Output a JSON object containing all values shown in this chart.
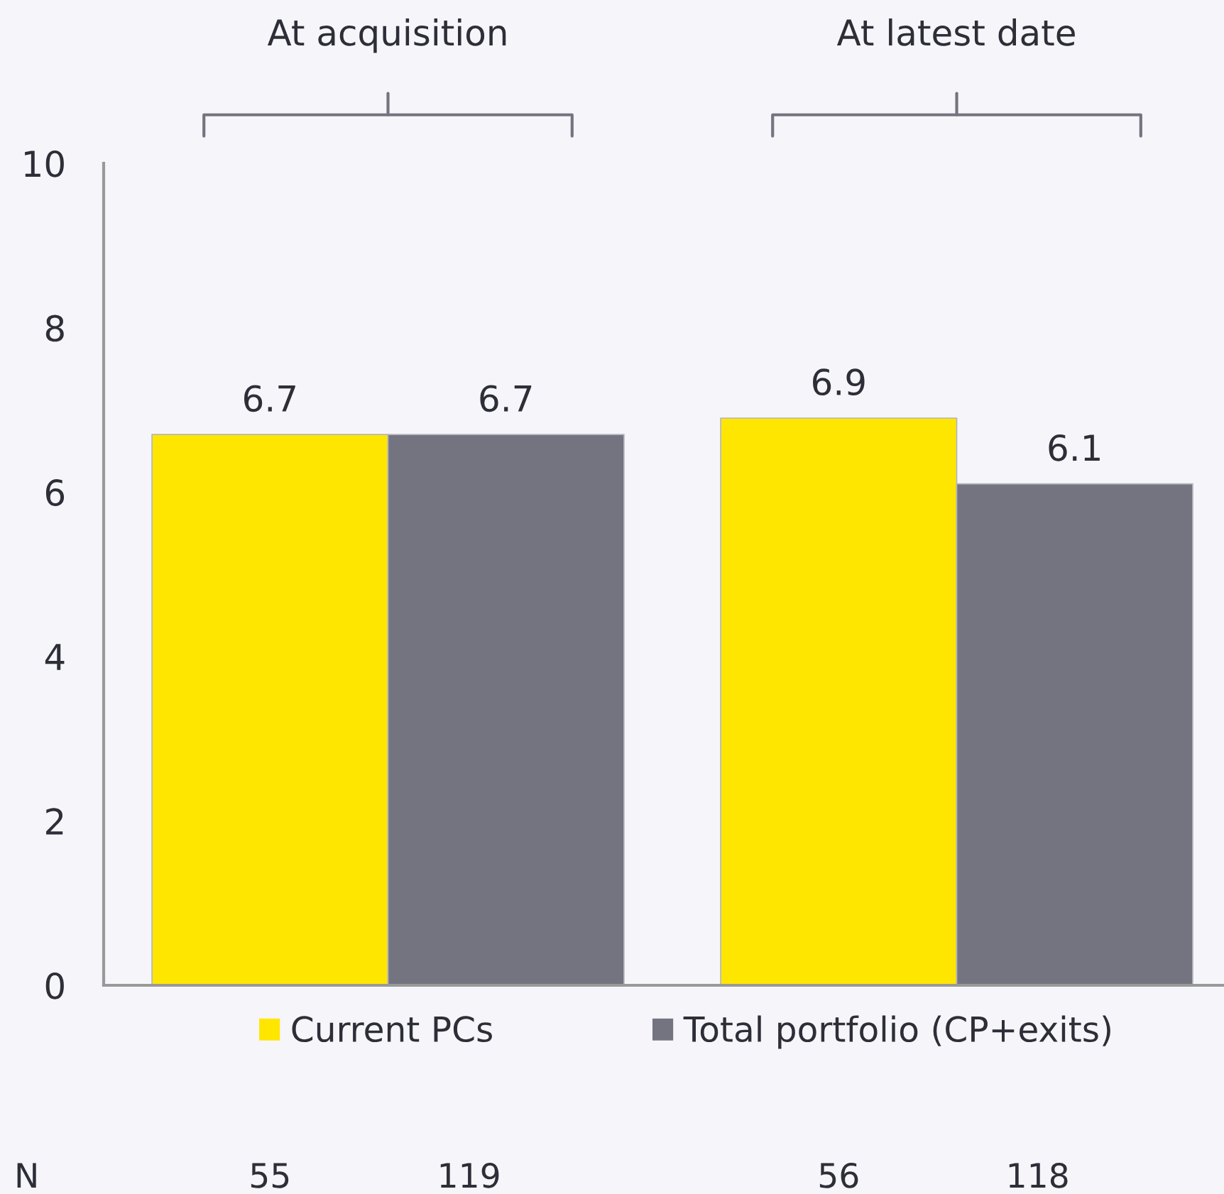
{
  "chart_data": {
    "type": "bar",
    "categories": [
      "At acquisition",
      "At latest date"
    ],
    "series": [
      {
        "name": "Current PCs",
        "color": "#ffe600",
        "values": [
          6.7,
          6.9
        ]
      },
      {
        "name": "Total portfolio (CP+exits)",
        "color": "#747480",
        "values": [
          6.7,
          6.1
        ]
      }
    ],
    "ylim": [
      0,
      10
    ],
    "yticks": [
      0,
      2,
      4,
      6,
      8,
      10
    ],
    "data_labels": true,
    "legend": "bottom",
    "annotations": [
      "N",
      "55",
      "119",
      "56",
      "118"
    ]
  }
}
